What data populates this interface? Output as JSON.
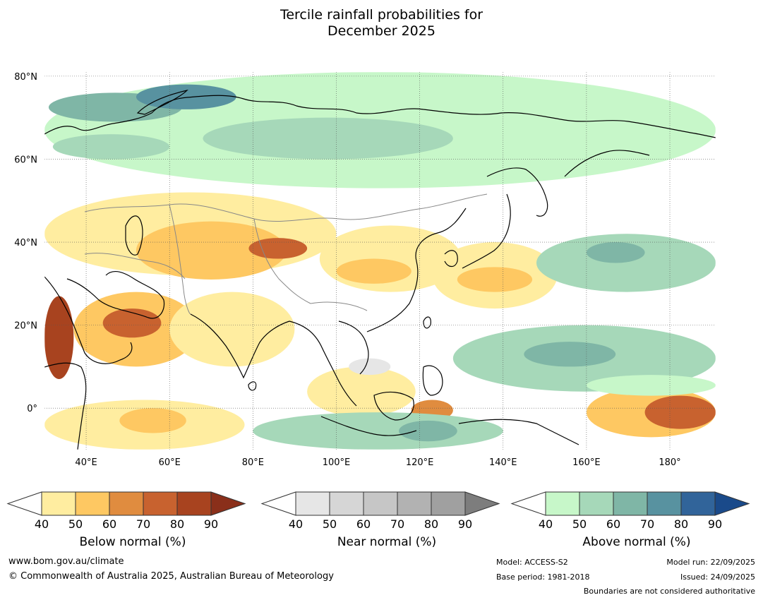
{
  "title": {
    "line1": "Tercile rainfall probabilities for",
    "line2": "December 2025"
  },
  "map": {
    "lon_range": [
      30,
      191
    ],
    "lat_range": [
      -10,
      81
    ],
    "lat_ticks": [
      {
        "value": 80,
        "label": "80°N"
      },
      {
        "value": 60,
        "label": "60°N"
      },
      {
        "value": 40,
        "label": "40°N"
      },
      {
        "value": 20,
        "label": "20°N"
      },
      {
        "value": 0,
        "label": "0°"
      }
    ],
    "lon_ticks": [
      {
        "value": 40,
        "label": "40°E"
      },
      {
        "value": 60,
        "label": "60°E"
      },
      {
        "value": 80,
        "label": "80°E"
      },
      {
        "value": 100,
        "label": "100°E"
      },
      {
        "value": 120,
        "label": "120°E"
      },
      {
        "value": 140,
        "label": "140°E"
      },
      {
        "value": 160,
        "label": "160°E"
      },
      {
        "value": 180,
        "label": "180°"
      }
    ]
  },
  "colorbars": [
    {
      "id": "below",
      "label": "Below normal (%)",
      "ticks": [
        "40",
        "50",
        "60",
        "70",
        "80",
        "90"
      ],
      "low_color": "#ffffff",
      "colors": [
        "#ffeda0",
        "#fec862",
        "#e08c3f",
        "#c8622f",
        "#a8431f"
      ],
      "high_color": "#8a2f1a"
    },
    {
      "id": "near",
      "label": "Near normal (%)",
      "ticks": [
        "40",
        "50",
        "60",
        "70",
        "80",
        "90"
      ],
      "low_color": "#ffffff",
      "colors": [
        "#e6e6e6",
        "#d6d6d6",
        "#c6c6c6",
        "#b2b2b2",
        "#a0a0a0"
      ],
      "high_color": "#7d7d7d"
    },
    {
      "id": "above",
      "label": "Above normal (%)",
      "ticks": [
        "40",
        "50",
        "60",
        "70",
        "80",
        "90"
      ],
      "low_color": "#ffffff",
      "colors": [
        "#c7f7c9",
        "#a6d8b9",
        "#7fb6a6",
        "#5892a0",
        "#31649a"
      ],
      "high_color": "#1a4a8a"
    }
  ],
  "footer": {
    "website": "www.bom.gov.au/climate",
    "copyright": "© Commonwealth of Australia 2025, Australian Bureau of Meteorology",
    "model": "Model: ACCESS-S2",
    "base_period": "Base period: 1981-2018",
    "model_run": "Model run: 22/09/2025",
    "issued": "Issued: 24/09/2025",
    "disclaimer": "Boundaries are not considered authoritative"
  },
  "probability_regions": [
    {
      "category": "above",
      "level": 1,
      "lon": 30,
      "lat": 81,
      "w": 161,
      "h": 28
    },
    {
      "category": "above",
      "level": 3,
      "lon": 31,
      "lat": 76,
      "w": 32,
      "h": 7
    },
    {
      "category": "above",
      "level": 4,
      "lon": 52,
      "lat": 78,
      "w": 24,
      "h": 6
    },
    {
      "category": "above",
      "level": 2,
      "lon": 68,
      "lat": 70,
      "w": 60,
      "h": 10
    },
    {
      "category": "above",
      "level": 2,
      "lon": 32,
      "lat": 66,
      "w": 28,
      "h": 6
    },
    {
      "category": "below",
      "level": 1,
      "lon": 30,
      "lat": 52,
      "w": 70,
      "h": 20
    },
    {
      "category": "below",
      "level": 2,
      "lon": 52,
      "lat": 45,
      "w": 36,
      "h": 14
    },
    {
      "category": "below",
      "level": 4,
      "lon": 79,
      "lat": 41,
      "w": 14,
      "h": 5
    },
    {
      "category": "below",
      "level": 1,
      "lon": 96,
      "lat": 44,
      "w": 34,
      "h": 16
    },
    {
      "category": "below",
      "level": 2,
      "lon": 100,
      "lat": 36,
      "w": 18,
      "h": 6
    },
    {
      "category": "below",
      "level": 1,
      "lon": 123,
      "lat": 40,
      "w": 30,
      "h": 16
    },
    {
      "category": "below",
      "level": 2,
      "lon": 129,
      "lat": 34,
      "w": 18,
      "h": 6
    },
    {
      "category": "below",
      "level": 5,
      "lon": 30,
      "lat": 27,
      "w": 7,
      "h": 20
    },
    {
      "category": "below",
      "level": 2,
      "lon": 37,
      "lat": 28,
      "w": 30,
      "h": 18
    },
    {
      "category": "below",
      "level": 4,
      "lon": 44,
      "lat": 24,
      "w": 14,
      "h": 7
    },
    {
      "category": "below",
      "level": 1,
      "lon": 60,
      "lat": 28,
      "w": 30,
      "h": 18
    },
    {
      "category": "below",
      "level": 1,
      "lon": 30,
      "lat": 2,
      "w": 48,
      "h": 12
    },
    {
      "category": "below",
      "level": 2,
      "lon": 48,
      "lat": 0,
      "w": 16,
      "h": 6
    },
    {
      "category": "below",
      "level": 1,
      "lon": 93,
      "lat": 10,
      "w": 26,
      "h": 12
    },
    {
      "category": "below",
      "level": 3,
      "lon": 118,
      "lat": 2,
      "w": 10,
      "h": 5
    },
    {
      "category": "below",
      "level": 2,
      "lon": 160,
      "lat": 5,
      "w": 31,
      "h": 12
    },
    {
      "category": "below",
      "level": 4,
      "lon": 174,
      "lat": 3,
      "w": 17,
      "h": 8
    },
    {
      "category": "above",
      "level": 2,
      "lon": 148,
      "lat": 42,
      "w": 43,
      "h": 14
    },
    {
      "category": "above",
      "level": 3,
      "lon": 160,
      "lat": 40,
      "w": 14,
      "h": 5
    },
    {
      "category": "above",
      "level": 2,
      "lon": 128,
      "lat": 20,
      "w": 63,
      "h": 16
    },
    {
      "category": "above",
      "level": 3,
      "lon": 145,
      "lat": 16,
      "w": 22,
      "h": 6
    },
    {
      "category": "above",
      "level": 2,
      "lon": 80,
      "lat": -1,
      "w": 60,
      "h": 9
    },
    {
      "category": "above",
      "level": 3,
      "lon": 115,
      "lat": -3,
      "w": 14,
      "h": 5
    },
    {
      "category": "above",
      "level": 1,
      "lon": 160,
      "lat": 8,
      "w": 31,
      "h": 5
    },
    {
      "category": "near",
      "level": 1,
      "lon": 103,
      "lat": 12,
      "w": 10,
      "h": 4
    }
  ]
}
